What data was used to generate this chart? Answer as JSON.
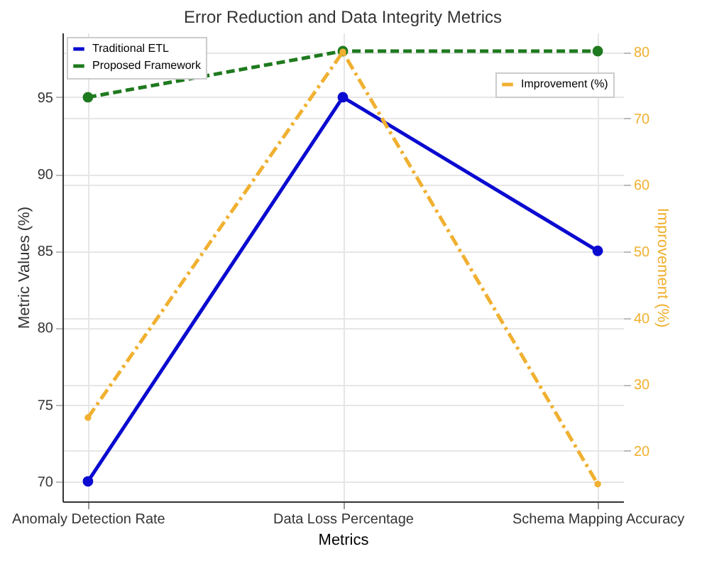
{
  "chart_data": {
    "type": "line",
    "title": "Error Reduction and Data Integrity Metrics",
    "xlabel": "Metrics",
    "ylabel": "Metric Values (%)",
    "y2label": "Improvement (%)",
    "categories": [
      "Anomaly Detection Rate",
      "Data Loss Percentage",
      "Schema Mapping Accuracy"
    ],
    "series": [
      {
        "name": "Traditional ETL",
        "color": "#0a0ad0",
        "values": [
          70,
          95,
          85
        ],
        "line_style": "solid"
      },
      {
        "name": "Proposed Framework",
        "color": "#1e7a1e",
        "values": [
          95,
          98,
          98
        ],
        "line_style": "dashed"
      },
      {
        "name": "Improvement (%)",
        "color": "#f0b030",
        "values": [
          25,
          80,
          15
        ],
        "line_style": "dashdot",
        "axis": "y2"
      }
    ],
    "ylim": [
      68.7,
      99.2
    ],
    "yticks": [
      70,
      75,
      80,
      85,
      90,
      95
    ],
    "y2lim": [
      12.4,
      82.9
    ],
    "y2ticks": [
      20,
      30,
      40,
      50,
      60,
      70,
      80
    ],
    "grid": true,
    "legend": "top left",
    "marker": "circle"
  }
}
